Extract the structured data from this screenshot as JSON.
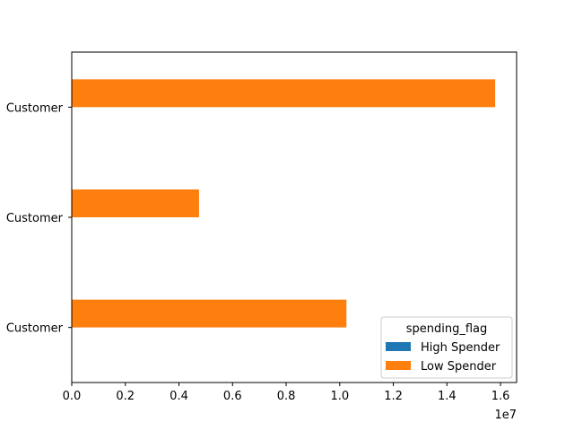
{
  "chart_data": {
    "type": "bar",
    "orientation": "horizontal",
    "categories": [
      "Customer",
      "Customer",
      "Customer"
    ],
    "series": [
      {
        "name": "High Spender",
        "values": [
          0,
          0,
          0
        ],
        "color": "#1f77b4"
      },
      {
        "name": "Low Spender",
        "values": [
          10250000,
          4750000,
          15800000
        ],
        "color": "#ff7f0e"
      }
    ],
    "xlim": [
      0,
      16600000
    ],
    "x_ticks": [
      0,
      2000000,
      4000000,
      6000000,
      8000000,
      10000000,
      12000000,
      14000000,
      16000000
    ],
    "x_tick_labels": [
      "0.0",
      "0.2",
      "0.4",
      "0.6",
      "0.8",
      "1.0",
      "1.2",
      "1.4",
      "1.6"
    ],
    "x_scale_label": "1e7",
    "legend": {
      "title": "spending_flag",
      "position": "lower-right"
    },
    "grid": false
  }
}
